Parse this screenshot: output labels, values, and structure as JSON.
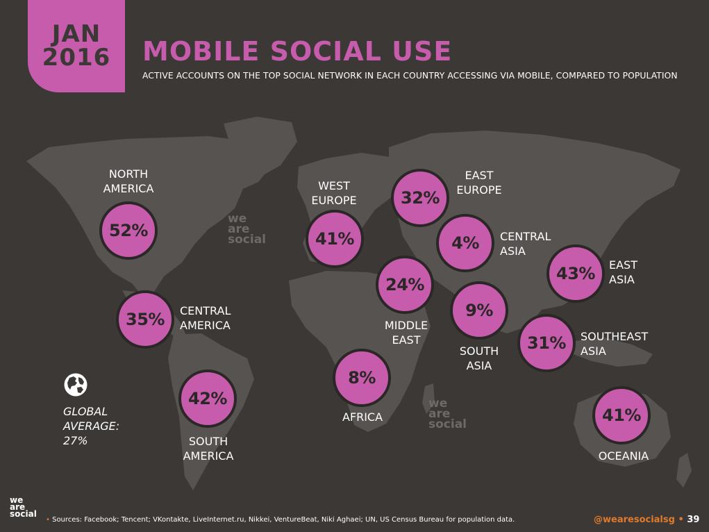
{
  "header": {
    "date_line1": "JAN",
    "date_line2": "2016",
    "title": "MOBILE SOCIAL USE",
    "subtitle": "ACTIVE ACCOUNTS ON THE TOP SOCIAL NETWORK IN EACH COUNTRY ACCESSING VIA MOBILE, COMPARED TO POPULATION"
  },
  "regions": [
    {
      "name_line1": "NORTH",
      "name_line2": "AMERICA",
      "value": "52%"
    },
    {
      "name_line1": "CENTRAL",
      "name_line2": "AMERICA",
      "value": "35%"
    },
    {
      "name_line1": "SOUTH",
      "name_line2": "AMERICA",
      "value": "42%"
    },
    {
      "name_line1": "WEST",
      "name_line2": "EUROPE",
      "value": "41%"
    },
    {
      "name_line1": "EAST",
      "name_line2": "EUROPE",
      "value": "32%"
    },
    {
      "name_line1": "CENTRAL",
      "name_line2": "ASIA",
      "value": "4%"
    },
    {
      "name_line1": "MIDDLE",
      "name_line2": "EAST",
      "value": "24%"
    },
    {
      "name_line1": "AFRICA",
      "name_line2": "",
      "value": "8%"
    },
    {
      "name_line1": "SOUTH",
      "name_line2": "ASIA",
      "value": "9%"
    },
    {
      "name_line1": "EAST",
      "name_line2": "ASIA",
      "value": "43%"
    },
    {
      "name_line1": "SOUTHEAST",
      "name_line2": "ASIA",
      "value": "31%"
    },
    {
      "name_line1": "OCEANIA",
      "name_line2": "",
      "value": "41%"
    }
  ],
  "global": {
    "line1": "GLOBAL",
    "line2": "AVERAGE:",
    "value": "27%"
  },
  "watermark": {
    "line1": "we",
    "line2": "are",
    "line3": "social"
  },
  "footer": {
    "logo_line1": "we",
    "logo_line2": "are",
    "logo_line3": "social",
    "sources": "Sources: Facebook; Tencent; VKontakte, LiveInternet.ru, Nikkei, VentureBeat, Niki Aghaei; UN, US Census Bureau for population data.",
    "handle": "@wearesocialsg",
    "page": "39"
  },
  "colors": {
    "accent": "#c75cac",
    "background": "#3b3836",
    "land": "#575351",
    "footer_accent": "#e07a2c"
  }
}
